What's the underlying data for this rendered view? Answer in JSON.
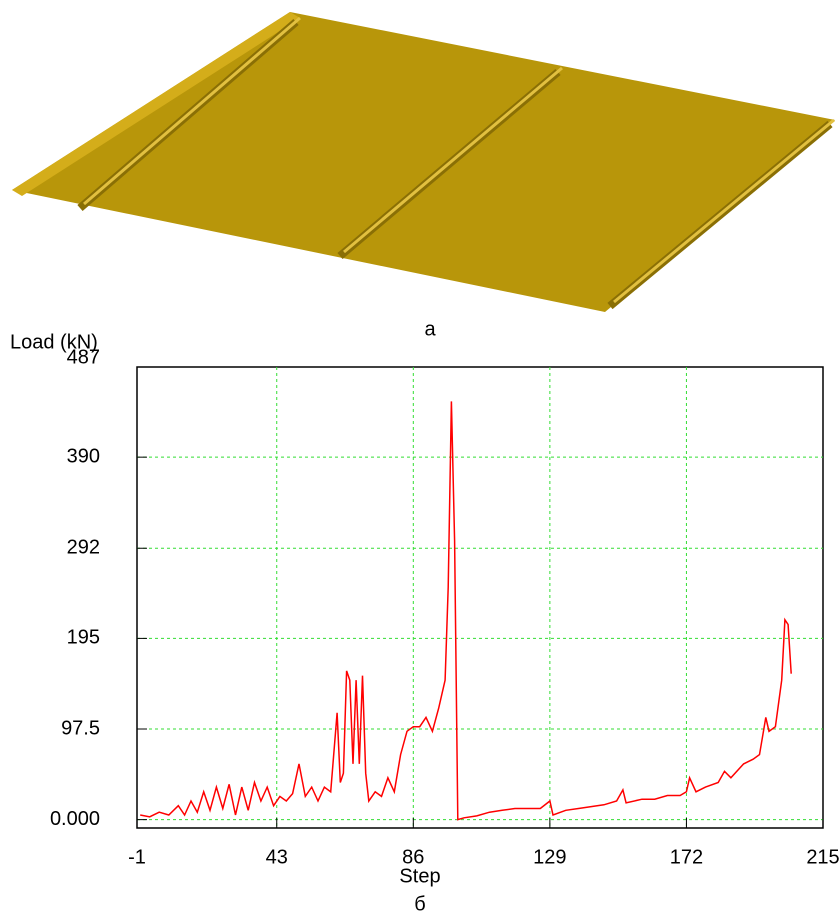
{
  "caption_top": "a",
  "chart_data": {
    "type": "line",
    "y_label": "Load (kN)",
    "x_label": "Step",
    "caption": "б",
    "xlim": [
      -1,
      215
    ],
    "xticks": [
      -1,
      43,
      86,
      129,
      172,
      215
    ],
    "ylim": [
      -9,
      487
    ],
    "yticks": [
      {
        "value": 0,
        "label": "0.000"
      },
      97.5,
      195,
      292,
      390,
      487
    ],
    "grid": true,
    "grid_color": "#33dd33",
    "x": [
      0,
      3,
      6,
      9,
      12,
      14,
      16,
      18,
      20,
      22,
      24,
      26,
      28,
      30,
      32,
      34,
      36,
      38,
      40,
      42,
      44,
      46,
      48,
      50,
      52,
      54,
      56,
      58,
      60,
      62,
      63,
      64,
      65,
      66,
      67,
      68,
      69,
      70,
      71,
      72,
      74,
      76,
      78,
      80,
      82,
      84,
      86,
      88,
      90,
      92,
      94,
      96,
      97,
      98,
      99,
      100,
      102,
      106,
      110,
      114,
      118,
      122,
      126,
      129,
      130,
      134,
      138,
      142,
      146,
      150,
      152,
      153,
      158,
      162,
      166,
      170,
      172,
      173,
      175,
      178,
      182,
      184,
      186,
      190,
      193,
      195,
      197,
      198,
      200,
      202,
      203,
      204,
      205
    ],
    "series": [
      {
        "color": "#ff0000",
        "values": [
          5,
          3,
          8,
          5,
          15,
          5,
          20,
          8,
          30,
          10,
          35,
          12,
          38,
          5,
          35,
          10,
          40,
          20,
          35,
          15,
          25,
          20,
          28,
          60,
          25,
          35,
          20,
          35,
          30,
          115,
          40,
          50,
          160,
          150,
          60,
          150,
          60,
          155,
          50,
          20,
          30,
          25,
          45,
          30,
          70,
          95,
          100,
          100,
          110,
          95,
          120,
          150,
          250,
          450,
          300,
          0,
          2,
          4,
          8,
          10,
          12,
          12,
          12,
          20,
          5,
          10,
          12,
          14,
          16,
          20,
          32,
          18,
          22,
          22,
          26,
          26,
          30,
          45,
          30,
          35,
          40,
          52,
          45,
          60,
          65,
          70,
          110,
          95,
          100,
          150,
          215,
          210,
          157
        ]
      }
    ]
  }
}
